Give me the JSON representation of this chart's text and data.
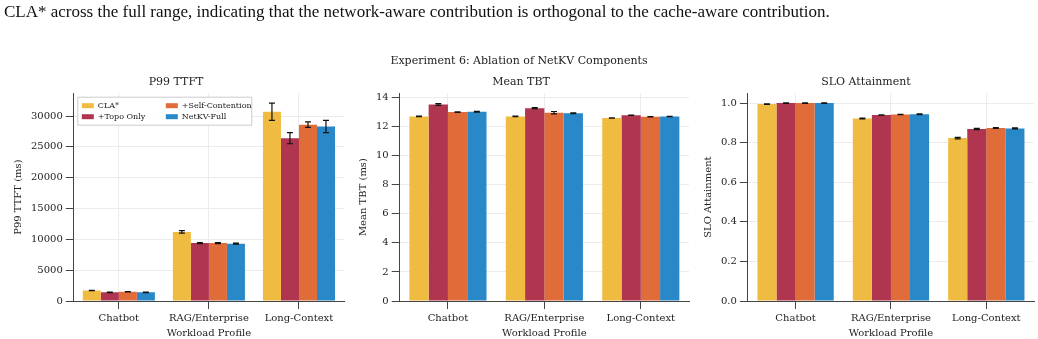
{
  "chart_data": [
    {
      "type": "bar",
      "title": "P99 TTFT",
      "xlabel": "Workload Profile",
      "ylabel": "P99 TTFT (ms)",
      "annotations": [
        "CLA* across the full range, indicating that the network-aware contribution is orthogonal to the cache-aware contribution.",
        "Experiment 6: Ablation of NetKV Components"
      ],
      "categories": [
        "Chatbot",
        "RAG/Enterprise",
        "Long-Context"
      ],
      "series": [
        {
          "name": "CLA*",
          "color": "#f0bb41",
          "values": [
            1700,
            11200,
            30700
          ],
          "errors": [
            40,
            200,
            1400
          ]
        },
        {
          "name": "+Topo Only",
          "color": "#b0354f",
          "values": [
            1400,
            9400,
            26400
          ],
          "errors": [
            30,
            80,
            900
          ]
        },
        {
          "name": "+Self-Contention",
          "color": "#e06c3a",
          "values": [
            1500,
            9400,
            28600
          ],
          "errors": [
            30,
            80,
            450
          ]
        },
        {
          "name": "NetKV-Full",
          "color": "#2888c8",
          "values": [
            1400,
            9300,
            28300
          ],
          "errors": [
            30,
            100,
            1000
          ]
        }
      ],
      "ylim": [
        0,
        33700
      ],
      "yticks": [
        0,
        5000,
        10000,
        15000,
        20000,
        25000,
        30000
      ],
      "grid": true,
      "legend": "top left"
    },
    {
      "type": "bar",
      "title": "Mean TBT",
      "xlabel": "Workload Profile",
      "ylabel": "Mean TBT (ms)",
      "categories": [
        "Chatbot",
        "RAG/Enterprise",
        "Long-Context"
      ],
      "series": [
        {
          "color": "#f0bb41",
          "values": [
            12.7,
            12.7,
            12.6
          ],
          "errors": [
            0.02,
            0.02,
            0.01
          ]
        },
        {
          "color": "#b0354f",
          "values": [
            13.52,
            13.27,
            12.78
          ],
          "errors": [
            0.06,
            0.04,
            0.01
          ]
        },
        {
          "color": "#e06c3a",
          "values": [
            13.0,
            12.96,
            12.68
          ],
          "errors": [
            0.02,
            0.08,
            0.01
          ]
        },
        {
          "color": "#2888c8",
          "values": [
            13.02,
            12.92,
            12.7
          ],
          "errors": [
            0.03,
            0.03,
            0.01
          ]
        }
      ],
      "ylim": [
        0,
        14.3
      ],
      "yticks": [
        0,
        2,
        4,
        6,
        8,
        10,
        12,
        14
      ],
      "grid": true
    },
    {
      "type": "bar",
      "title": "SLO Attainment",
      "xlabel": "Workload Profile",
      "ylabel": "SLO Attainment",
      "categories": [
        "Chatbot",
        "RAG/Enterprise",
        "Long-Context"
      ],
      "series": [
        {
          "color": "#f0bb41",
          "values": [
            0.995,
            0.922,
            0.823
          ],
          "errors": [
            0.001,
            0.002,
            0.004
          ]
        },
        {
          "color": "#b0354f",
          "values": [
            1.0,
            0.94,
            0.869
          ],
          "errors": [
            0.001,
            0.001,
            0.003
          ]
        },
        {
          "color": "#e06c3a",
          "values": [
            1.0,
            0.942,
            0.874
          ],
          "errors": [
            0.001,
            0.001,
            0.002
          ]
        },
        {
          "color": "#2888c8",
          "values": [
            1.0,
            0.944,
            0.872
          ],
          "errors": [
            0.001,
            0.002,
            0.003
          ]
        }
      ],
      "ylim": [
        0,
        1.05
      ],
      "yticks": [
        {
          "value": 0,
          "label": "0.0"
        },
        0.2,
        0.4,
        0.6,
        0.8,
        {
          "value": 1,
          "label": "1.0"
        }
      ],
      "grid": true
    }
  ]
}
